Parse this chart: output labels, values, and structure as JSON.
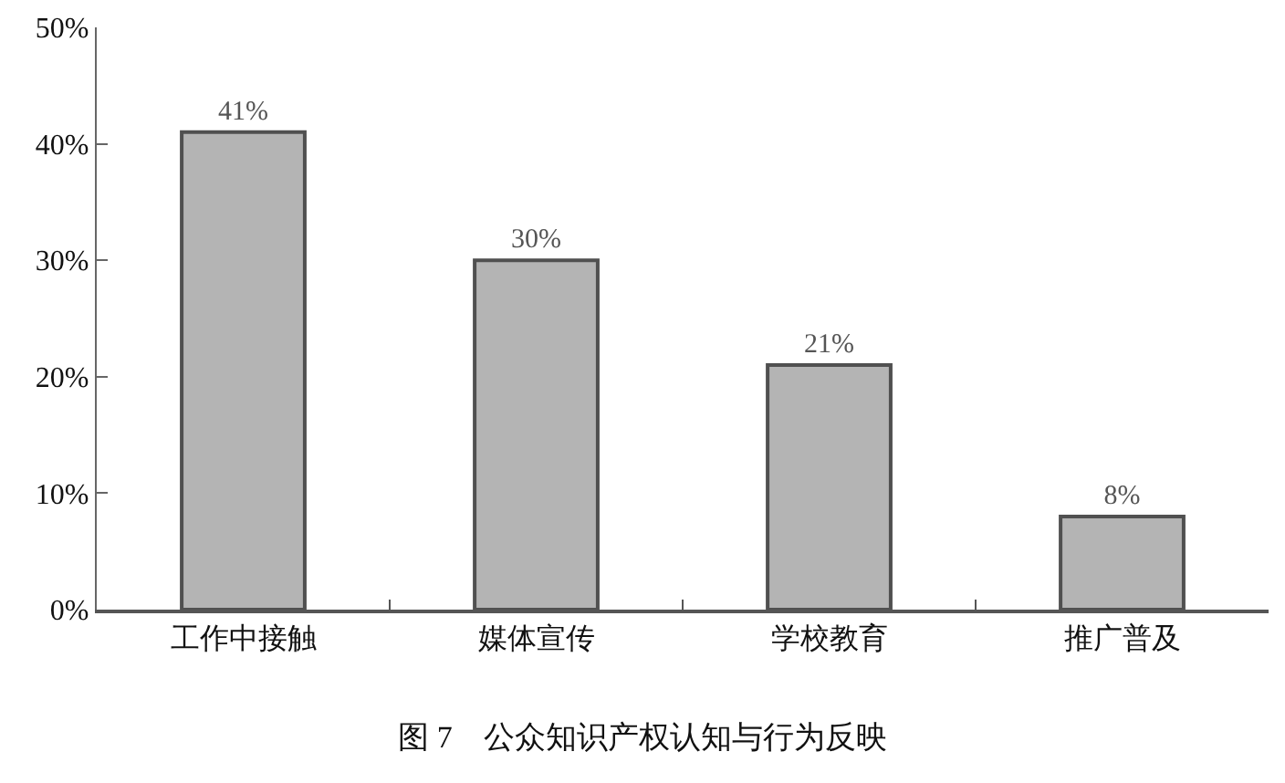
{
  "chart_data": {
    "type": "bar",
    "title": "图 7　公众知识产权认知与行为反映",
    "categories": [
      "工作中接触",
      "媒体宣传",
      "学校教育",
      "推广普及"
    ],
    "values": [
      41,
      30,
      21,
      8
    ],
    "value_labels": [
      "41%",
      "30%",
      "21%",
      "8%"
    ],
    "color": "#b4b4b4",
    "ylim": [
      0,
      50
    ],
    "yticks": [
      {
        "value": 0,
        "label": "0%"
      },
      {
        "value": 10,
        "label": "10%"
      },
      {
        "value": 20,
        "label": "20%"
      },
      {
        "value": 30,
        "label": "30%"
      },
      {
        "value": 40,
        "label": "40%"
      },
      {
        "value": 50,
        "label": "50%"
      }
    ]
  }
}
